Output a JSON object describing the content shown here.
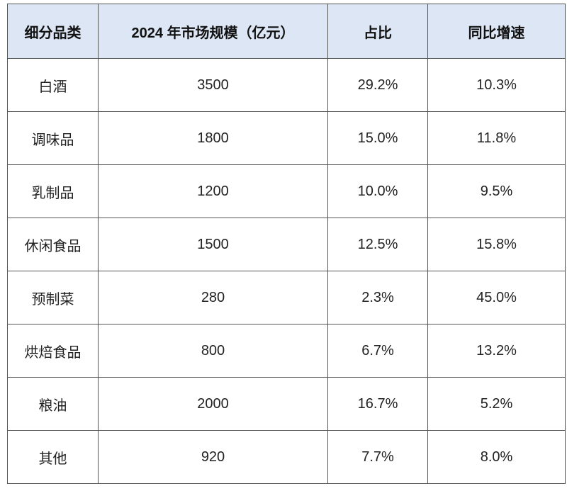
{
  "table": {
    "header": [
      "细分品类",
      "2024 年市场规模（亿元）",
      "占比",
      "同比增速"
    ],
    "rows": [
      [
        "白酒",
        "3500",
        "29.2%",
        "10.3%"
      ],
      [
        "调味品",
        "1800",
        "15.0%",
        "11.8%"
      ],
      [
        "乳制品",
        "1200",
        "10.0%",
        "9.5%"
      ],
      [
        "休闲食品",
        "1500",
        "12.5%",
        "15.8%"
      ],
      [
        "预制菜",
        "280",
        "2.3%",
        "45.0%"
      ],
      [
        "烘焙食品",
        "800",
        "6.7%",
        "13.2%"
      ],
      [
        "粮油",
        "2000",
        "16.7%",
        "5.2%"
      ],
      [
        "其他",
        "920",
        "7.7%",
        "8.0%"
      ]
    ]
  }
}
